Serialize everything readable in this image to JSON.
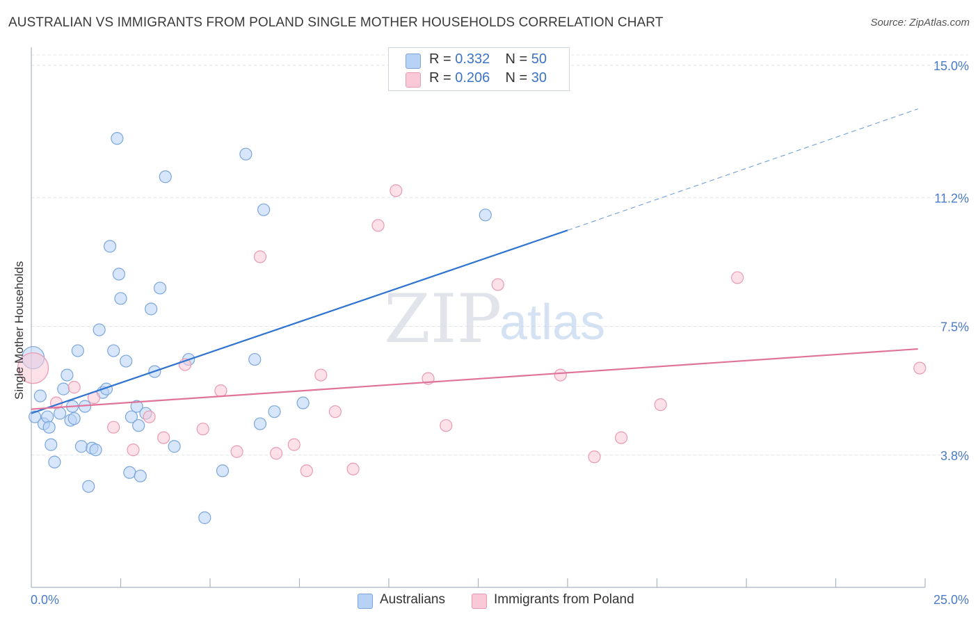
{
  "header": {
    "title": "AUSTRALIAN VS IMMIGRANTS FROM POLAND SINGLE MOTHER HOUSEHOLDS CORRELATION CHART",
    "source": "Source: ZipAtlas.com"
  },
  "watermark": {
    "zip": "ZIP",
    "atlas": "atlas"
  },
  "legend": {
    "rows": [
      {
        "r_label": "R =",
        "r_value": "0.332",
        "n_label": "N =",
        "n_value": "50"
      },
      {
        "r_label": "R =",
        "r_value": "0.206",
        "n_label": "N =",
        "n_value": "30"
      }
    ]
  },
  "bottom_legend": {
    "australians": "Australians",
    "poland": "Immigrants from Poland"
  },
  "colors": {
    "blue_fill": "#b7d2f5",
    "blue_stroke": "#7aa6dc",
    "blue_line": "#2f74d0",
    "pink_fill": "#f9c9d7",
    "pink_stroke": "#e99ab2",
    "pink_line": "#e0739a",
    "axis_text": "#4a7bc8",
    "grid": "#dde2ea"
  },
  "chart_data": {
    "type": "scatter",
    "title": "AUSTRALIAN VS IMMIGRANTS FROM POLAND SINGLE MOTHER HOUSEHOLDS CORRELATION CHART",
    "xlabel": "",
    "ylabel": "Single Mother Households",
    "xlim": [
      0,
      25
    ],
    "ylim": [
      0,
      15.3
    ],
    "x_tick_labels": [
      "0.0%",
      "25.0%"
    ],
    "y_ticks": [
      3.8,
      7.5,
      11.2,
      15.0
    ],
    "y_tick_labels": [
      "3.8%",
      "7.5%",
      "11.2%",
      "15.0%"
    ],
    "grid": true,
    "series": [
      {
        "name": "Australians",
        "r": 0.332,
        "n": 50,
        "points": [
          [
            0.05,
            6.6
          ],
          [
            0.1,
            4.9
          ],
          [
            0.25,
            5.5
          ],
          [
            0.35,
            4.7
          ],
          [
            0.45,
            4.9
          ],
          [
            0.5,
            4.6
          ],
          [
            0.55,
            4.1
          ],
          [
            0.65,
            3.6
          ],
          [
            0.8,
            5.0
          ],
          [
            0.9,
            5.7
          ],
          [
            1.0,
            6.1
          ],
          [
            1.1,
            4.8
          ],
          [
            1.15,
            5.2
          ],
          [
            1.2,
            4.85
          ],
          [
            1.3,
            6.8
          ],
          [
            1.4,
            4.05
          ],
          [
            1.5,
            5.2
          ],
          [
            1.6,
            2.9
          ],
          [
            1.7,
            4.0
          ],
          [
            1.8,
            3.95
          ],
          [
            1.9,
            7.4
          ],
          [
            2.0,
            5.6
          ],
          [
            2.1,
            5.7
          ],
          [
            2.2,
            9.8
          ],
          [
            2.3,
            6.8
          ],
          [
            2.4,
            12.9
          ],
          [
            2.45,
            9.0
          ],
          [
            2.5,
            8.3
          ],
          [
            2.65,
            6.5
          ],
          [
            2.75,
            3.3
          ],
          [
            2.8,
            4.9
          ],
          [
            2.95,
            5.2
          ],
          [
            3.0,
            4.65
          ],
          [
            3.05,
            3.2
          ],
          [
            3.2,
            5.0
          ],
          [
            3.35,
            8.0
          ],
          [
            3.45,
            6.2
          ],
          [
            3.6,
            8.6
          ],
          [
            3.75,
            11.8
          ],
          [
            4.0,
            4.05
          ],
          [
            4.4,
            6.55
          ],
          [
            4.85,
            2.0
          ],
          [
            5.35,
            3.35
          ],
          [
            6.0,
            12.45
          ],
          [
            6.25,
            6.55
          ],
          [
            6.4,
            4.7
          ],
          [
            6.5,
            10.85
          ],
          [
            6.8,
            5.05
          ],
          [
            7.6,
            5.3
          ],
          [
            12.7,
            10.7
          ]
        ]
      },
      {
        "name": "Immigrants from Poland",
        "r": 0.206,
        "n": 30,
        "points": [
          [
            0.05,
            6.3
          ],
          [
            0.7,
            5.3
          ],
          [
            1.2,
            5.75
          ],
          [
            1.75,
            5.45
          ],
          [
            2.3,
            4.6
          ],
          [
            2.85,
            3.95
          ],
          [
            3.3,
            4.9
          ],
          [
            3.7,
            4.3
          ],
          [
            4.3,
            6.4
          ],
          [
            4.8,
            4.55
          ],
          [
            5.3,
            5.65
          ],
          [
            5.75,
            3.9
          ],
          [
            6.4,
            9.5
          ],
          [
            6.85,
            3.85
          ],
          [
            7.35,
            4.1
          ],
          [
            7.7,
            3.35
          ],
          [
            8.1,
            6.1
          ],
          [
            8.5,
            5.05
          ],
          [
            9.0,
            3.4
          ],
          [
            9.7,
            10.4
          ],
          [
            10.2,
            11.4
          ],
          [
            11.1,
            6.0
          ],
          [
            11.6,
            4.65
          ],
          [
            13.05,
            8.7
          ],
          [
            14.8,
            6.1
          ],
          [
            15.75,
            3.75
          ],
          [
            16.5,
            4.3
          ],
          [
            17.6,
            5.25
          ],
          [
            19.75,
            8.9
          ],
          [
            24.85,
            6.3
          ]
        ]
      }
    ],
    "trend_lines": [
      {
        "series": "Australians",
        "x": [
          0,
          15
        ],
        "y": [
          5.0,
          10.26
        ],
        "dashed_x": [
          15,
          24.8
        ],
        "dashed_y": [
          10.26,
          13.75
        ]
      },
      {
        "series": "Immigrants from Poland",
        "x": [
          0,
          24.8
        ],
        "y": [
          5.12,
          6.85
        ]
      }
    ]
  }
}
